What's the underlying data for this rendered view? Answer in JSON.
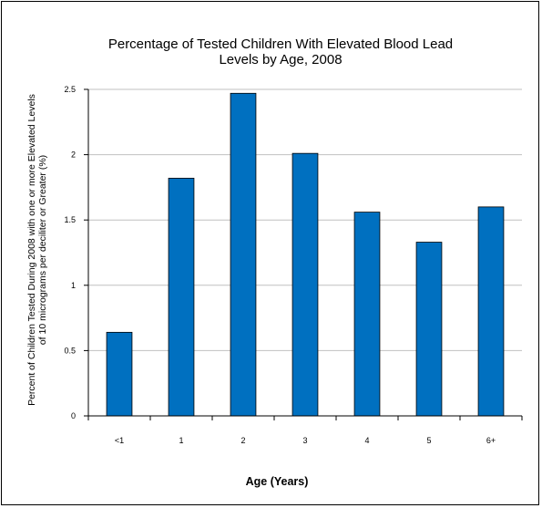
{
  "chart_data": {
    "type": "bar",
    "title_lines": [
      "Percentage of Tested Children With Elevated Blood Lead",
      "Levels by Age, 2008"
    ],
    "xlabel": "Age (Years)",
    "ylabel_lines": [
      "Percent of Children Tested During 2008 with one or more Elevated Levels",
      "of 10 micrograms per deciliter or Greater (%)"
    ],
    "categories": [
      "<1",
      "1",
      "2",
      "3",
      "4",
      "5",
      "6+"
    ],
    "values": [
      0.64,
      1.82,
      2.47,
      2.01,
      1.56,
      1.33,
      1.6
    ],
    "ylim": [
      0,
      2.5
    ],
    "yticks": [
      0,
      0.5,
      1,
      1.5,
      2,
      2.5
    ],
    "ytick_labels": [
      "0",
      "0.5",
      "1",
      "1.5",
      "2",
      "2.5"
    ],
    "grid": true,
    "legend": "none",
    "colors": {
      "bar": "#0070C0",
      "bar_edge": "#000000",
      "grid": "#c0c0c0",
      "axis": "#000000"
    }
  }
}
